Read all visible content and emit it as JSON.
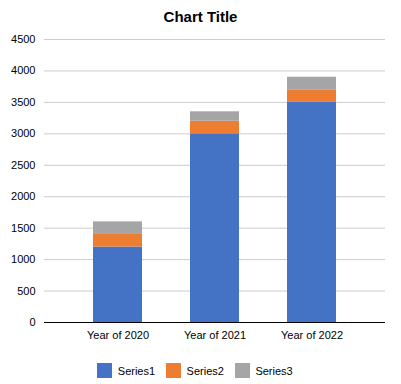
{
  "chart_data": {
    "type": "bar",
    "title": "Chart Title",
    "categories": [
      "Year of 2020",
      "Year of 2021",
      "Year of 2022"
    ],
    "series": [
      {
        "name": "Series1",
        "color": "#4472C4",
        "values": [
          1200,
          3000,
          3500
        ]
      },
      {
        "name": "Series2",
        "color": "#ED7D31",
        "values": [
          200,
          200,
          200
        ]
      },
      {
        "name": "Series3",
        "color": "#A5A5A5",
        "values": [
          200,
          150,
          200
        ]
      }
    ],
    "stacked": true,
    "ylim": [
      0,
      4500
    ],
    "yticks": [
      0,
      500,
      1000,
      1500,
      2000,
      2500,
      3000,
      3500,
      4000,
      4500
    ],
    "grid": true,
    "legend": "bottom"
  }
}
